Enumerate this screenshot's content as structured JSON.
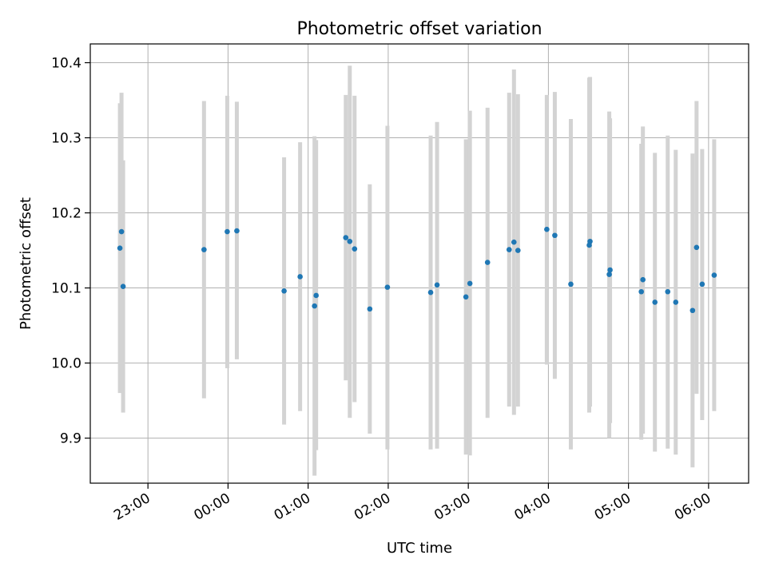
{
  "chart_data": {
    "type": "scatter",
    "title": "Photometric offset variation",
    "xlabel": "UTC time",
    "ylabel": "Photometric offset",
    "x_unit": "hours relative to 00:00 UTC",
    "xlim": [
      -1.72,
      6.5
    ],
    "ylim": [
      9.84,
      10.425
    ],
    "grid": true,
    "x_ticks": [
      {
        "value": -1.0,
        "label": "23:00"
      },
      {
        "value": 0.0,
        "label": "00:00"
      },
      {
        "value": 1.0,
        "label": "01:00"
      },
      {
        "value": 2.0,
        "label": "02:00"
      },
      {
        "value": 3.0,
        "label": "03:00"
      },
      {
        "value": 4.0,
        "label": "04:00"
      },
      {
        "value": 5.0,
        "label": "05:00"
      },
      {
        "value": 6.0,
        "label": "06:00"
      }
    ],
    "y_ticks": [
      {
        "value": 9.9,
        "label": "9.9"
      },
      {
        "value": 10.0,
        "label": "10.0"
      },
      {
        "value": 10.1,
        "label": "10.1"
      },
      {
        "value": 10.2,
        "label": "10.2"
      },
      {
        "value": 10.3,
        "label": "10.3"
      },
      {
        "value": 10.4,
        "label": "10.4"
      }
    ],
    "colors": {
      "points": "#1f77b4",
      "errorbars": "#d3d3d3",
      "grid": "#b0b0b0"
    },
    "series": [
      {
        "points": [
          {
            "x": -1.35,
            "y": 10.153,
            "ylo": 9.96,
            "yhi": 10.346
          },
          {
            "x": -1.33,
            "y": 10.175,
            "ylo": 9.99,
            "yhi": 10.36
          },
          {
            "x": -1.31,
            "y": 10.102,
            "ylo": 9.934,
            "yhi": 10.27
          },
          {
            "x": -0.3,
            "y": 10.151,
            "ylo": 9.953,
            "yhi": 10.349
          },
          {
            "x": -0.01,
            "y": 10.175,
            "ylo": 9.993,
            "yhi": 10.356
          },
          {
            "x": 0.11,
            "y": 10.176,
            "ylo": 10.005,
            "yhi": 10.348
          },
          {
            "x": 0.7,
            "y": 10.096,
            "ylo": 9.918,
            "yhi": 10.274
          },
          {
            "x": 0.9,
            "y": 10.115,
            "ylo": 9.936,
            "yhi": 10.294
          },
          {
            "x": 1.08,
            "y": 10.076,
            "ylo": 9.85,
            "yhi": 10.302
          },
          {
            "x": 1.1,
            "y": 10.09,
            "ylo": 9.884,
            "yhi": 10.297
          },
          {
            "x": 1.47,
            "y": 10.167,
            "ylo": 9.977,
            "yhi": 10.357
          },
          {
            "x": 1.52,
            "y": 10.162,
            "ylo": 9.927,
            "yhi": 10.396
          },
          {
            "x": 1.58,
            "y": 10.152,
            "ylo": 9.948,
            "yhi": 10.356
          },
          {
            "x": 1.77,
            "y": 10.072,
            "ylo": 9.906,
            "yhi": 10.238
          },
          {
            "x": 1.99,
            "y": 10.101,
            "ylo": 9.885,
            "yhi": 10.316
          },
          {
            "x": 2.53,
            "y": 10.094,
            "ylo": 9.885,
            "yhi": 10.303
          },
          {
            "x": 2.61,
            "y": 10.104,
            "ylo": 9.886,
            "yhi": 10.321
          },
          {
            "x": 2.97,
            "y": 10.088,
            "ylo": 9.878,
            "yhi": 10.298
          },
          {
            "x": 3.02,
            "y": 10.106,
            "ylo": 9.877,
            "yhi": 10.336
          },
          {
            "x": 3.24,
            "y": 10.134,
            "ylo": 9.927,
            "yhi": 10.34
          },
          {
            "x": 3.51,
            "y": 10.151,
            "ylo": 9.942,
            "yhi": 10.36
          },
          {
            "x": 3.57,
            "y": 10.161,
            "ylo": 9.931,
            "yhi": 10.391
          },
          {
            "x": 3.62,
            "y": 10.15,
            "ylo": 9.942,
            "yhi": 10.358
          },
          {
            "x": 3.98,
            "y": 10.178,
            "ylo": 9.998,
            "yhi": 10.357
          },
          {
            "x": 4.08,
            "y": 10.17,
            "ylo": 9.979,
            "yhi": 10.361
          },
          {
            "x": 4.28,
            "y": 10.105,
            "ylo": 9.885,
            "yhi": 10.325
          },
          {
            "x": 4.51,
            "y": 10.157,
            "ylo": 9.934,
            "yhi": 10.38
          },
          {
            "x": 4.52,
            "y": 10.162,
            "ylo": 9.942,
            "yhi": 10.381
          },
          {
            "x": 4.76,
            "y": 10.118,
            "ylo": 9.9,
            "yhi": 10.335
          },
          {
            "x": 4.77,
            "y": 10.124,
            "ylo": 9.92,
            "yhi": 10.326
          },
          {
            "x": 5.16,
            "y": 10.095,
            "ylo": 9.898,
            "yhi": 10.292
          },
          {
            "x": 5.18,
            "y": 10.111,
            "ylo": 9.906,
            "yhi": 10.315
          },
          {
            "x": 5.33,
            "y": 10.081,
            "ylo": 9.882,
            "yhi": 10.28
          },
          {
            "x": 5.49,
            "y": 10.095,
            "ylo": 9.886,
            "yhi": 10.303
          },
          {
            "x": 5.59,
            "y": 10.081,
            "ylo": 9.878,
            "yhi": 10.284
          },
          {
            "x": 5.8,
            "y": 10.07,
            "ylo": 9.861,
            "yhi": 10.279
          },
          {
            "x": 5.85,
            "y": 10.154,
            "ylo": 9.959,
            "yhi": 10.349
          },
          {
            "x": 5.92,
            "y": 10.105,
            "ylo": 9.924,
            "yhi": 10.285
          },
          {
            "x": 6.07,
            "y": 10.117,
            "ylo": 9.936,
            "yhi": 10.298
          }
        ]
      }
    ]
  }
}
